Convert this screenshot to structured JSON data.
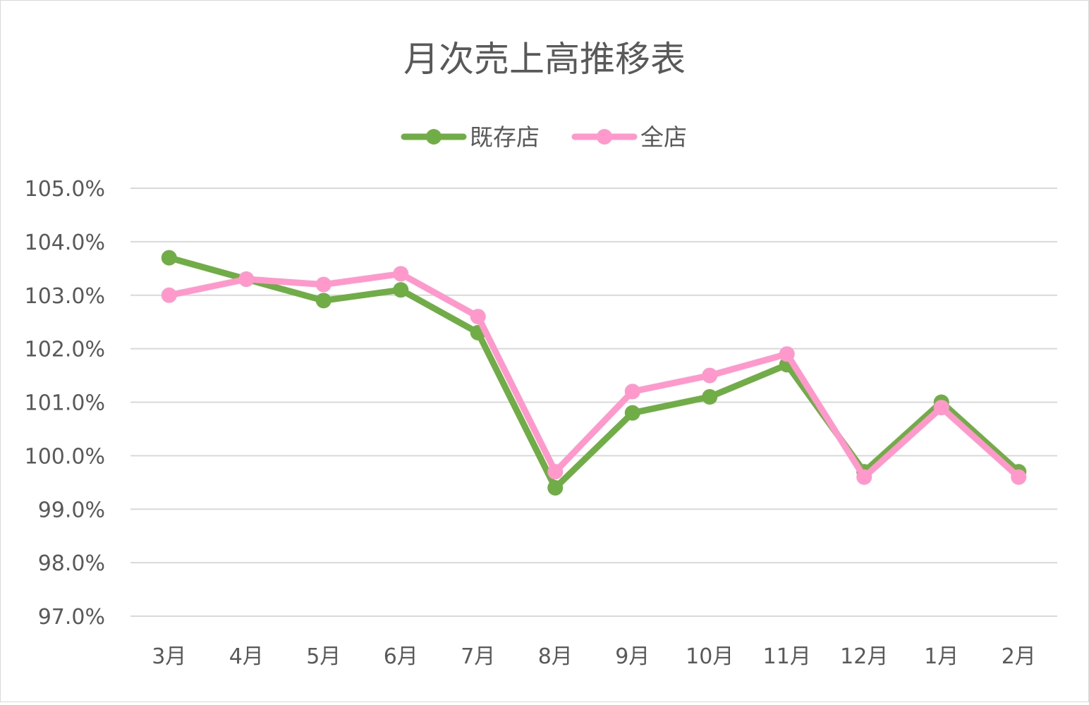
{
  "chart_data": {
    "type": "line",
    "title": "月次売上高推移表",
    "xlabel": "",
    "ylabel": "",
    "categories": [
      "3月",
      "4月",
      "5月",
      "6月",
      "7月",
      "8月",
      "9月",
      "10月",
      "11月",
      "12月",
      "1月",
      "2月"
    ],
    "ylim": [
      97.0,
      105.0
    ],
    "ytick_step": 1.0,
    "ytick_format": "percent-1dp",
    "grid": true,
    "legend_position": "top",
    "series": [
      {
        "name": "既存店",
        "color": "#70ad47",
        "values": [
          103.7,
          103.3,
          102.9,
          103.1,
          102.3,
          99.4,
          100.8,
          101.1,
          101.7,
          99.7,
          101.0,
          99.7
        ]
      },
      {
        "name": "全店",
        "color": "#ff99cc",
        "values": [
          103.0,
          103.3,
          103.2,
          103.4,
          102.6,
          99.7,
          101.2,
          101.5,
          101.9,
          99.6,
          100.9,
          99.6
        ]
      }
    ]
  }
}
